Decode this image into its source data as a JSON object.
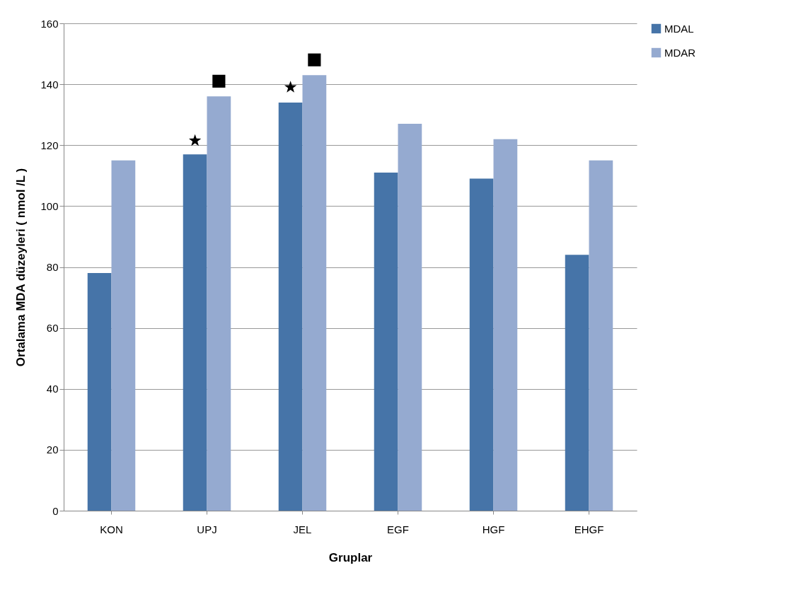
{
  "chart_data": {
    "type": "bar",
    "xlabel": "Gruplar",
    "ylabel": "Ortalama MDA düzeyleri ( nmol /L )",
    "categories": [
      "KON",
      "UPJ",
      "JEL",
      "EGF",
      "HGF",
      "EHGF"
    ],
    "series": [
      {
        "name": "MDAL",
        "color": "#4674a8",
        "values": [
          78,
          117,
          134,
          111,
          109,
          84
        ]
      },
      {
        "name": "MDAR",
        "color": "#95aad0",
        "values": [
          115,
          136,
          143,
          127,
          122,
          115
        ]
      },
      {
        "type": "scatter",
        "marker": "star",
        "color": "#000000",
        "values": [
          null,
          121.5,
          139,
          null,
          null,
          null
        ]
      },
      {
        "type": "scatter",
        "marker": "square",
        "color": "#000000",
        "values": [
          null,
          141,
          148,
          null,
          null,
          null
        ]
      }
    ],
    "ylim": [
      0,
      160
    ],
    "yticks": [
      0,
      20,
      40,
      60,
      80,
      100,
      120,
      140,
      160
    ],
    "grid": "y",
    "legend": "right"
  }
}
